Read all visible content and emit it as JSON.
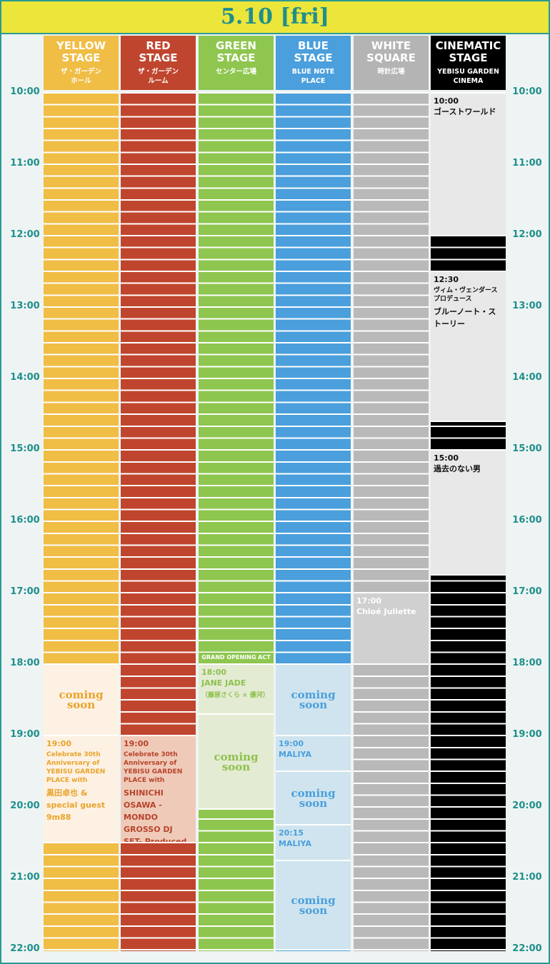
{
  "header": {
    "date": "5.10 [fri]"
  },
  "times": [
    "10:00",
    "11:00",
    "12:00",
    "13:00",
    "14:00",
    "15:00",
    "16:00",
    "17:00",
    "18:00",
    "19:00",
    "20:00",
    "21:00",
    "22:00"
  ],
  "stages": [
    {
      "name": "YELLOW\nSTAGE",
      "sub": "ザ・ガーデン\nホール",
      "events": [
        {
          "label": "coming soon"
        },
        {
          "time": "19:00",
          "note": "Celebrate 30th Anniversary of YEBISU GARDEN PLACE with",
          "title": "黒田卓也 & special guest 9m88"
        }
      ]
    },
    {
      "name": "RED\nSTAGE",
      "sub": "ザ・ガーデン\nルーム",
      "events": [
        {
          "time": "19:00",
          "note": "Celebrate 30th Anniversary of YEBISU GARDEN PLACE with",
          "title": "SHINICHI OSAWA -MONDO GROSSO DJ SET- Produced by クリス・ペプラー"
        }
      ]
    },
    {
      "name": "GREEN\nSTAGE",
      "sub": "センター広場",
      "band": "GRAND OPENING ACT",
      "events": [
        {
          "time": "18:00",
          "title": "JANE JADE",
          "note": "（藤原さくら × 優河）"
        },
        {
          "label": "coming soon"
        }
      ]
    },
    {
      "name": "BLUE\nSTAGE",
      "sub": "BLUE NOTE\nPLACE",
      "events": [
        {
          "label": "coming soon"
        },
        {
          "time": "19:00",
          "title": "MALIYA"
        },
        {
          "label": "coming soon"
        },
        {
          "time": "20:15",
          "title": "MALIYA"
        },
        {
          "label": "coming soon"
        }
      ]
    },
    {
      "name": "WHITE\nSQUARE",
      "sub": "時計広場",
      "events": [
        {
          "time": "17:00",
          "title": "Chloé Juliette"
        }
      ]
    },
    {
      "name": "CINEMATIC\nSTAGE",
      "sub": "YEBISU GARDEN\nCINEMA",
      "events": [
        {
          "time": "10:00",
          "title": "ゴーストワールド"
        },
        {
          "time": "12:30",
          "note": "ヴィム・ヴェンダース プロデュース",
          "title": "ブルーノート・ストーリー"
        },
        {
          "time": "15:00",
          "title": "過去のない男"
        }
      ]
    }
  ]
}
